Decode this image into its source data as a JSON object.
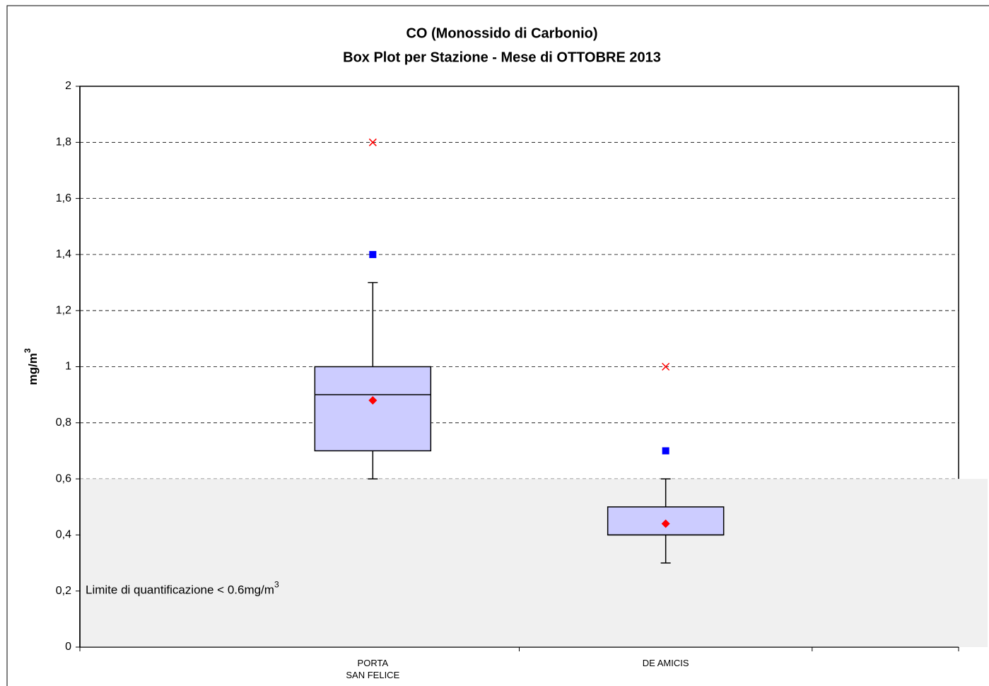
{
  "chart_data": {
    "type": "box",
    "title": "CO (Monossido di Carbonio)",
    "subtitle": "Box Plot per Stazione - Mese di OTTOBRE 2013",
    "ylabel": {
      "text": "mg/m",
      "sup": "3"
    },
    "annotation": {
      "text": "Limite di quantificazione < 0.6mg/m",
      "sup": "3"
    },
    "shade_below": 0.6,
    "categories": [
      "PORTA\nSAN FELICE",
      "DE AMICIS"
    ],
    "boxes": [
      {
        "whisker_low": 0.6,
        "q1": 0.7,
        "median": 0.9,
        "q3": 1.0,
        "whisker_high": 1.3,
        "mean": 0.88,
        "square": 1.4,
        "cross": 1.8
      },
      {
        "whisker_low": 0.3,
        "q1": 0.4,
        "median": 0.4,
        "q3": 0.5,
        "whisker_high": 0.6,
        "mean": 0.44,
        "square": 0.7,
        "cross": 1.0
      }
    ],
    "box_color": "#ccccff",
    "mean_color": "#ff0000",
    "square_color": "#0000ff",
    "cross_color": "#ff0000",
    "shade_color": "#f0f0f0",
    "ylim": [
      0,
      2
    ],
    "yticks": [
      0,
      {
        "value": 0.2,
        "label": "0,2"
      },
      {
        "value": 0.4,
        "label": "0,4"
      },
      {
        "value": 0.6,
        "label": "0,6"
      },
      {
        "value": 0.8,
        "label": "0,8"
      },
      1,
      {
        "value": 1.2,
        "label": "1,2"
      },
      {
        "value": 1.4,
        "label": "1,4"
      },
      {
        "value": 1.6,
        "label": "1,6"
      },
      {
        "value": 1.8,
        "label": "1,8"
      },
      2
    ],
    "grid": true
  }
}
